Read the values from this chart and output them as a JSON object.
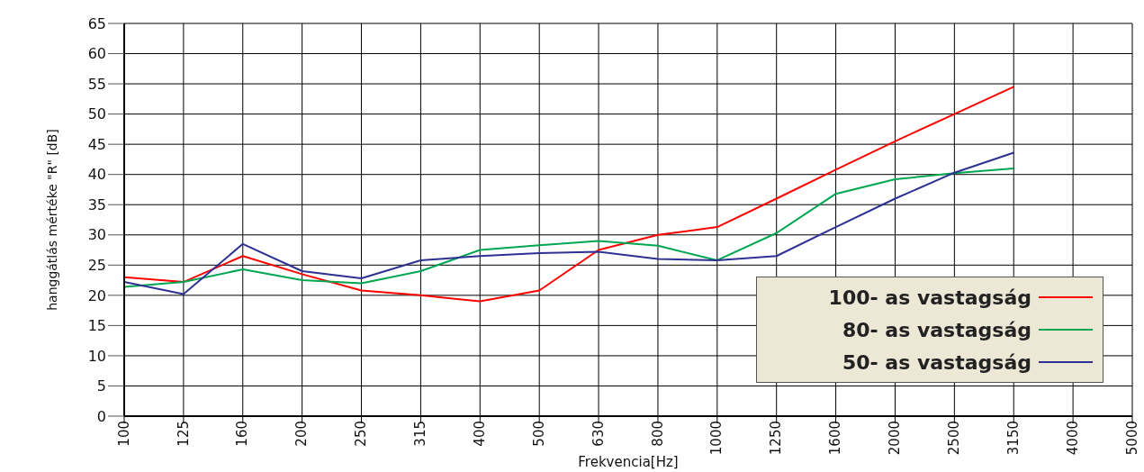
{
  "chart_data": {
    "type": "line",
    "xlabel": "Frekvencia[Hz]",
    "ylabel": "hanggátlás mértéke \"R\" [dB]",
    "categories": [
      "100",
      "125",
      "160",
      "200",
      "250",
      "315",
      "400",
      "500",
      "630",
      "800",
      "1000",
      "1250",
      "1600",
      "2000",
      "2500",
      "3150",
      "4000",
      "5000"
    ],
    "series": [
      {
        "name": "100- as vastagság",
        "color": "#ff0000",
        "values": [
          23,
          22.2,
          26.5,
          23.5,
          20.8,
          20,
          19,
          20.8,
          27.5,
          30,
          31.3,
          36,
          40.8,
          45.5,
          50,
          54.5,
          null,
          null
        ]
      },
      {
        "name": "80- as vastagság",
        "color": "#00a651",
        "values": [
          21.4,
          22.2,
          24.3,
          22.5,
          22,
          24,
          27.5,
          28.3,
          29,
          28.2,
          25.8,
          30.3,
          36.8,
          39.2,
          40.2,
          41,
          null,
          null
        ]
      },
      {
        "name": "50- as vastagság",
        "color": "#2e3192",
        "values": [
          22.2,
          20.2,
          28.5,
          24,
          22.8,
          25.8,
          26.5,
          27,
          27.2,
          26,
          25.8,
          26.5,
          31.3,
          36,
          40.3,
          43.6,
          null,
          null
        ]
      }
    ],
    "ylim": [
      0,
      65
    ],
    "yticks": [
      0,
      5,
      10,
      15,
      20,
      25,
      30,
      35,
      40,
      45,
      50,
      55,
      60,
      65
    ],
    "grid": true,
    "legend": "bottom right",
    "marker": "none",
    "line_style": "solid"
  }
}
